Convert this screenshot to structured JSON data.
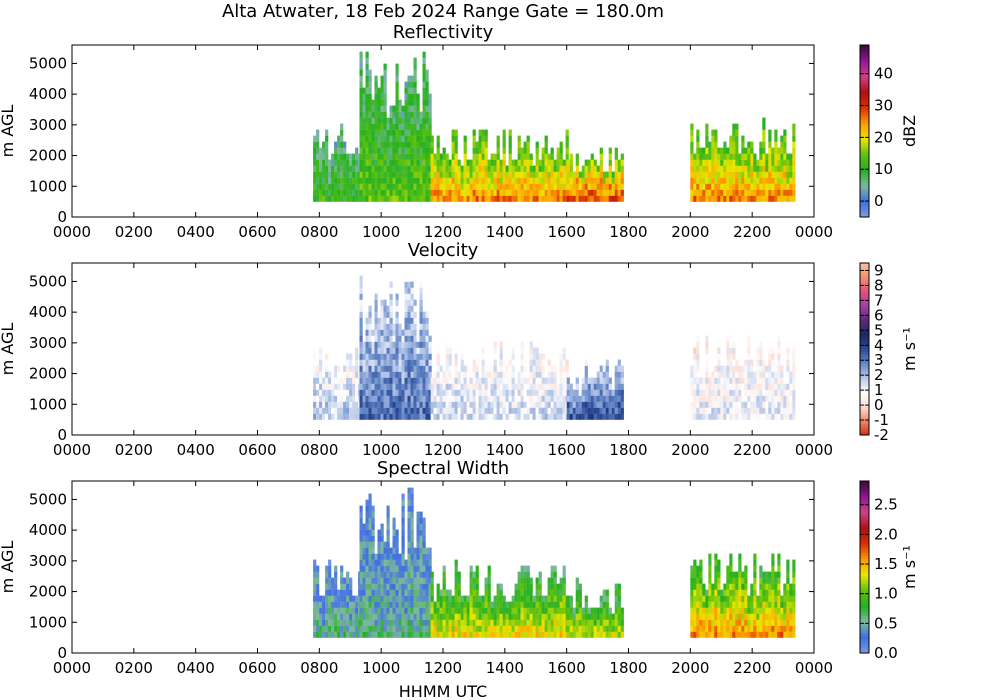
{
  "figure": {
    "title": "Alta Atwater, 18 Feb 2024 Range Gate = 180.0m",
    "xlabel": "HHMM UTC"
  },
  "chart_data": [
    {
      "type": "heatmap",
      "title": "Reflectivity",
      "xlabel": "",
      "ylabel": "m AGL",
      "x_tick_labels": [
        "0000",
        "0200",
        "0400",
        "0600",
        "0800",
        "1000",
        "1200",
        "1400",
        "1600",
        "1800",
        "2000",
        "2200",
        "0000"
      ],
      "xlim_hours": [
        0,
        24
      ],
      "y_ticks": [
        0,
        1000,
        2000,
        3000,
        4000,
        5000
      ],
      "ylim": [
        0,
        5600
      ],
      "colorbar": {
        "label": "dBZ",
        "range": [
          -5,
          49
        ],
        "ticks": [
          0,
          10,
          20,
          30,
          40
        ],
        "colors": [
          "#7f9ce6",
          "#3f6fe0",
          "#7fb8a0",
          "#22b022",
          "#60c010",
          "#e8e800",
          "#ff9a00",
          "#d83000",
          "#b01010",
          "#d0408a",
          "#901890",
          "#3a0a3a"
        ]
      },
      "data_segments": [
        {
          "start_hour": 7.8,
          "end_hour": 9.3,
          "top_m": 3100,
          "typical_value": 10,
          "note_level": "blue-green"
        },
        {
          "start_hour": 9.3,
          "end_hour": 11.6,
          "top_m": 5400,
          "typical_value": 12
        },
        {
          "start_hour": 11.6,
          "end_hour": 16.0,
          "top_m": 2900,
          "typical_value": 22
        },
        {
          "start_hour": 16.0,
          "end_hour": 17.8,
          "top_m": 2300,
          "typical_value": 25
        },
        {
          "start_hour": 20.0,
          "end_hour": 23.3,
          "top_m": 3200,
          "typical_value": 22
        }
      ]
    },
    {
      "type": "heatmap",
      "title": "Velocity",
      "xlabel": "",
      "ylabel": "m AGL",
      "x_tick_labels": [
        "0000",
        "0200",
        "0400",
        "0600",
        "0800",
        "1000",
        "1200",
        "1400",
        "1600",
        "1800",
        "2000",
        "2200",
        "0000"
      ],
      "xlim_hours": [
        0,
        24
      ],
      "y_ticks": [
        0,
        1000,
        2000,
        3000,
        4000,
        5000
      ],
      "ylim": [
        0,
        5600
      ],
      "colorbar": {
        "label": "m s⁻¹",
        "range": [
          -2,
          9.5
        ],
        "ticks": [
          -2,
          -1,
          0,
          1,
          2,
          3,
          4,
          5,
          6,
          7,
          8,
          9
        ],
        "colors": [
          "#d03010",
          "#f08868",
          "#fbe0d8",
          "#ffffff",
          "#b8c8e8",
          "#6688c8",
          "#2c4a98",
          "#1a2860",
          "#5a2a7a",
          "#a040a0",
          "#e05080",
          "#f09070",
          "#f8c0a0"
        ]
      },
      "data_segments": [
        {
          "start_hour": 7.8,
          "end_hour": 9.3,
          "top_m": 3100,
          "typical_value": 1.5
        },
        {
          "start_hour": 9.3,
          "end_hour": 11.6,
          "top_m": 5400,
          "typical_value": 2.8
        },
        {
          "start_hour": 11.6,
          "end_hour": 16.0,
          "top_m": 2900,
          "typical_value": 1.2
        },
        {
          "start_hour": 16.0,
          "end_hour": 17.8,
          "top_m": 2300,
          "typical_value": 3.2
        },
        {
          "start_hour": 20.0,
          "end_hour": 23.3,
          "top_m": 3200,
          "typical_value": 1.0
        }
      ]
    },
    {
      "type": "heatmap",
      "title": "Spectral Width",
      "xlabel": "HHMM UTC",
      "ylabel": "m AGL",
      "x_tick_labels": [
        "0000",
        "0200",
        "0400",
        "0600",
        "0800",
        "1000",
        "1200",
        "1400",
        "1600",
        "1800",
        "2000",
        "2200",
        "0000"
      ],
      "xlim_hours": [
        0,
        24
      ],
      "y_ticks": [
        0,
        1000,
        2000,
        3000,
        4000,
        5000
      ],
      "ylim": [
        0,
        5600
      ],
      "colorbar": {
        "label": "m s⁻¹",
        "range": [
          0,
          2.9
        ],
        "ticks": [
          "0.0",
          "0.5",
          "1.0",
          "1.5",
          "2.0",
          "2.5"
        ],
        "colors": [
          "#7f9ce6",
          "#3f6fe0",
          "#7fb8a0",
          "#22b022",
          "#60c010",
          "#e8e800",
          "#ff9a00",
          "#d83000",
          "#b01010",
          "#d0408a",
          "#901890",
          "#3a0a3a"
        ]
      },
      "data_segments": [
        {
          "start_hour": 7.8,
          "end_hour": 9.3,
          "top_m": 3100,
          "typical_value": 0.5
        },
        {
          "start_hour": 9.3,
          "end_hour": 11.6,
          "top_m": 5400,
          "typical_value": 0.5
        },
        {
          "start_hour": 11.6,
          "end_hour": 16.0,
          "top_m": 2900,
          "typical_value": 1.2
        },
        {
          "start_hour": 16.0,
          "end_hour": 17.8,
          "top_m": 2300,
          "typical_value": 1.1
        },
        {
          "start_hour": 20.0,
          "end_hour": 23.3,
          "top_m": 3200,
          "typical_value": 1.4
        }
      ]
    }
  ]
}
